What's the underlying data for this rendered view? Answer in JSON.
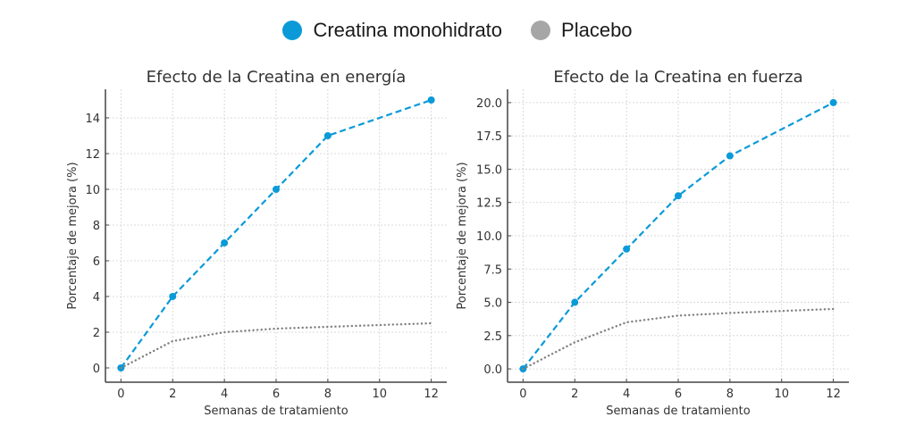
{
  "legend": {
    "items": [
      {
        "label": "Creatina monohidrato",
        "color": "#0a9ad8"
      },
      {
        "label": "Placebo",
        "color": "#a6a6a6"
      }
    ]
  },
  "chart_data": [
    {
      "type": "line",
      "title": "Efecto de la Creatina en energía",
      "xlabel": "Semanas de tratamiento",
      "ylabel": "Porcentaje de mejora (%)",
      "x": [
        0,
        2,
        4,
        6,
        8,
        10,
        12
      ],
      "xticks": [
        "0",
        "2",
        "4",
        "6",
        "8",
        "10",
        "12"
      ],
      "yticks": [
        "0",
        "2",
        "4",
        "6",
        "8",
        "10",
        "12",
        "14"
      ],
      "ytick_values": [
        0,
        2,
        4,
        6,
        8,
        10,
        12,
        14
      ],
      "xlim": [
        -0.6,
        12.6
      ],
      "ylim": [
        -0.8,
        15.6
      ],
      "grid": true,
      "series": [
        {
          "name": "Creatina monohidrato",
          "color": "#0a9ad8",
          "style": "dashed",
          "markers": true,
          "x": [
            0,
            2,
            4,
            6,
            8,
            12
          ],
          "values": [
            0,
            4,
            7,
            10,
            13,
            15
          ]
        },
        {
          "name": "Placebo",
          "color": "#808080",
          "style": "dotted",
          "markers": false,
          "x": [
            0,
            2,
            4,
            6,
            8,
            10,
            12
          ],
          "values": [
            0,
            1.5,
            2.0,
            2.2,
            2.3,
            2.4,
            2.5
          ]
        }
      ]
    },
    {
      "type": "line",
      "title": "Efecto de la Creatina en fuerza",
      "xlabel": "Semanas de tratamiento",
      "ylabel": "Porcentaje de mejora (%)",
      "x": [
        0,
        2,
        4,
        6,
        8,
        10,
        12
      ],
      "xticks": [
        "0",
        "2",
        "4",
        "6",
        "8",
        "10",
        "12"
      ],
      "yticks": [
        "0.0",
        "2.5",
        "5.0",
        "7.5",
        "10.0",
        "12.5",
        "15.0",
        "17.5",
        "20.0"
      ],
      "ytick_values": [
        0,
        2.5,
        5,
        7.5,
        10,
        12.5,
        15,
        17.5,
        20
      ],
      "xlim": [
        -0.6,
        12.6
      ],
      "ylim": [
        -1.0,
        21.0
      ],
      "grid": true,
      "series": [
        {
          "name": "Creatina monohidrato",
          "color": "#0a9ad8",
          "style": "dashed",
          "markers": true,
          "x": [
            0,
            2,
            4,
            6,
            8,
            12
          ],
          "values": [
            0,
            5,
            9,
            13,
            16,
            20
          ]
        },
        {
          "name": "Placebo",
          "color": "#808080",
          "style": "dotted",
          "markers": false,
          "x": [
            0,
            2,
            4,
            6,
            8,
            10,
            12
          ],
          "values": [
            0,
            2.0,
            3.5,
            4.0,
            4.2,
            4.35,
            4.5
          ]
        }
      ]
    }
  ]
}
